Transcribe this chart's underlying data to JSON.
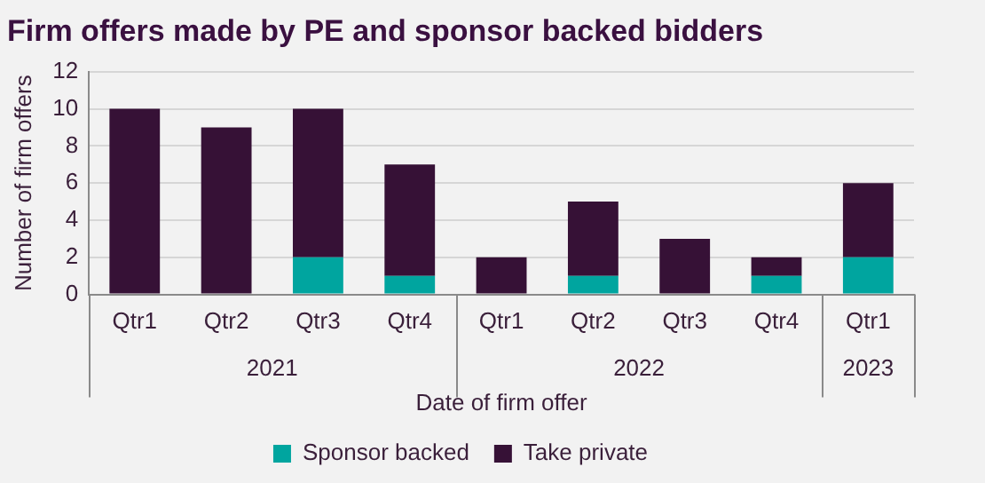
{
  "chart_data": {
    "type": "bar",
    "title": "Firm offers made by PE and sponsor backed bidders",
    "xlabel": "Date of firm offer",
    "ylabel": "Number of firm offers",
    "categories": [
      "Qtr1",
      "Qtr2",
      "Qtr3",
      "Qtr4",
      "Qtr1",
      "Qtr2",
      "Qtr3",
      "Qtr4",
      "Qtr1"
    ],
    "annotations": [
      "2021",
      "2022",
      "2023"
    ],
    "series": [
      {
        "name": "Sponsor backed",
        "color": "#00a59f",
        "values": [
          0,
          0,
          2,
          1,
          0,
          1,
          0,
          1,
          2
        ]
      },
      {
        "name": "Take private",
        "color": "#361136",
        "values": [
          10,
          9,
          8,
          6,
          2,
          4,
          3,
          1,
          4
        ]
      }
    ],
    "stacked": true,
    "ylim": [
      0,
      12
    ],
    "yticks": [
      0,
      2,
      4,
      6,
      8,
      10,
      12
    ],
    "grid": "y",
    "legend": "bottom"
  }
}
